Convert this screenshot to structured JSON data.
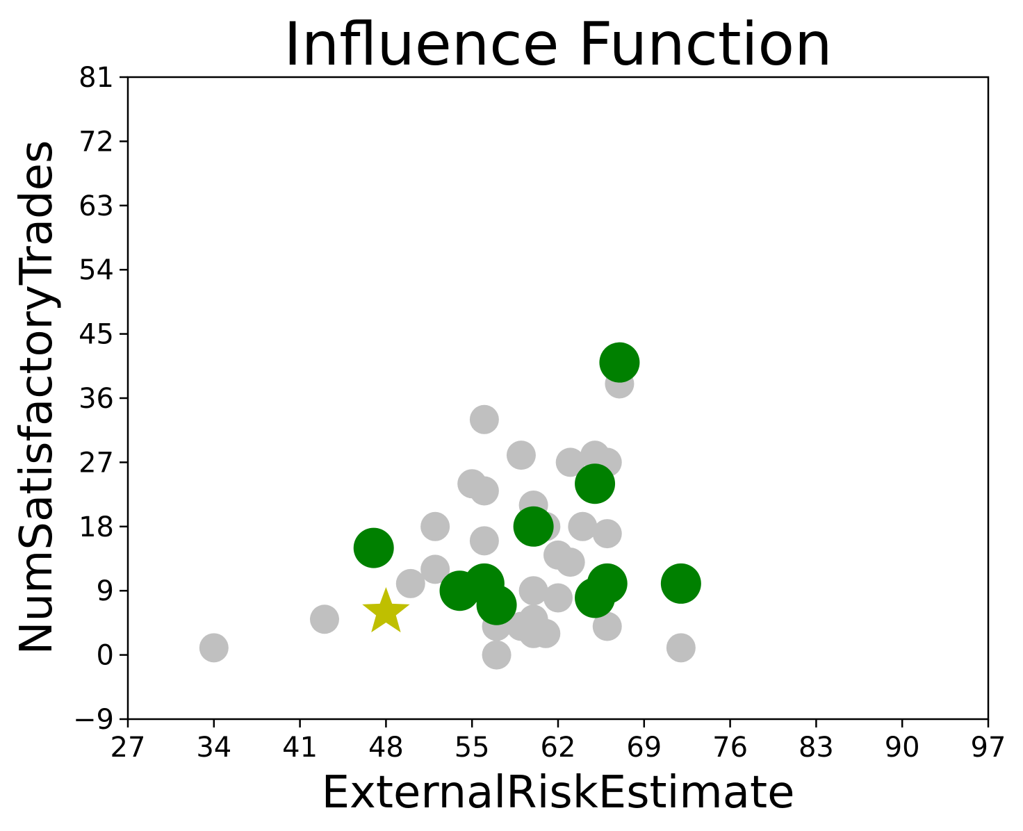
{
  "chart_data": {
    "type": "scatter",
    "title": "Influence Function",
    "xlabel": "ExternalRiskEstimate",
    "ylabel": "NumSatisfactoryTrades",
    "xlim": [
      27,
      97
    ],
    "ylim": [
      -9,
      81
    ],
    "xticks": [
      27,
      34,
      41,
      48,
      55,
      62,
      69,
      76,
      83,
      90,
      97
    ],
    "yticks": [
      -9,
      0,
      9,
      18,
      27,
      36,
      45,
      54,
      63,
      72,
      81
    ],
    "ytick_labels": [
      "−9",
      "0",
      "9",
      "18",
      "27",
      "36",
      "45",
      "54",
      "63",
      "72",
      "81"
    ],
    "grid": false,
    "series": [
      {
        "marker": "circle-small",
        "color": "#c0c0c0",
        "points": [
          {
            "x": 34,
            "y": 1
          },
          {
            "x": 43,
            "y": 5
          },
          {
            "x": 50,
            "y": 10
          },
          {
            "x": 52,
            "y": 12
          },
          {
            "x": 52,
            "y": 18
          },
          {
            "x": 55,
            "y": 24
          },
          {
            "x": 56,
            "y": 23
          },
          {
            "x": 56,
            "y": 16
          },
          {
            "x": 56,
            "y": 33
          },
          {
            "x": 57,
            "y": 4
          },
          {
            "x": 57,
            "y": 0
          },
          {
            "x": 59,
            "y": 4
          },
          {
            "x": 59,
            "y": 28
          },
          {
            "x": 60,
            "y": 21
          },
          {
            "x": 60,
            "y": 9
          },
          {
            "x": 60,
            "y": 5
          },
          {
            "x": 60,
            "y": 3
          },
          {
            "x": 61,
            "y": 3
          },
          {
            "x": 61,
            "y": 18
          },
          {
            "x": 62,
            "y": 8
          },
          {
            "x": 62,
            "y": 14
          },
          {
            "x": 63,
            "y": 13
          },
          {
            "x": 63,
            "y": 27
          },
          {
            "x": 64,
            "y": 18
          },
          {
            "x": 65,
            "y": 28
          },
          {
            "x": 66,
            "y": 27
          },
          {
            "x": 66,
            "y": 17
          },
          {
            "x": 66,
            "y": 4
          },
          {
            "x": 67,
            "y": 38
          },
          {
            "x": 72,
            "y": 1
          }
        ]
      },
      {
        "marker": "circle-large",
        "color": "#008000",
        "points": [
          {
            "x": 47,
            "y": 15
          },
          {
            "x": 54,
            "y": 9
          },
          {
            "x": 56,
            "y": 10
          },
          {
            "x": 57,
            "y": 7
          },
          {
            "x": 60,
            "y": 18
          },
          {
            "x": 65,
            "y": 24
          },
          {
            "x": 65,
            "y": 8
          },
          {
            "x": 66,
            "y": 10
          },
          {
            "x": 67,
            "y": 41
          },
          {
            "x": 72,
            "y": 10
          }
        ]
      },
      {
        "marker": "star",
        "color": "#bfbf00",
        "points": [
          {
            "x": 48,
            "y": 6
          }
        ]
      }
    ]
  }
}
